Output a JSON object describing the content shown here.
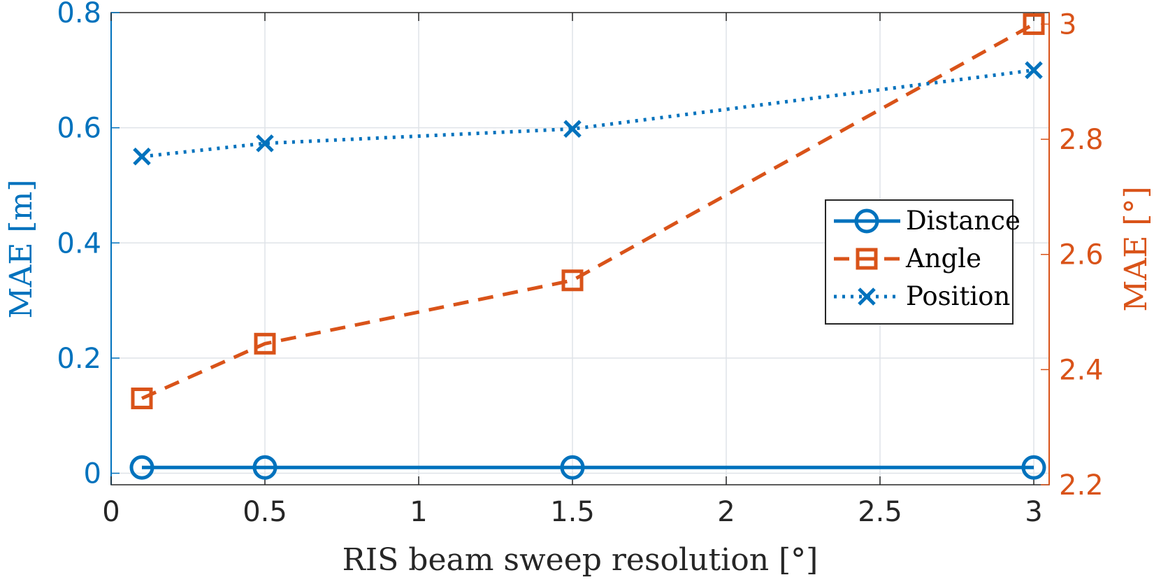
{
  "chart_data": {
    "type": "line",
    "x": [
      0.1,
      0.5,
      1.5,
      3
    ],
    "xlabel": "RIS beam sweep resolution [°]",
    "xlim": [
      0,
      3.05
    ],
    "xticks": [
      "0",
      "0.5",
      "1",
      "1.5",
      "2",
      "2.5",
      "3"
    ],
    "ylabel_left": "MAE [m]",
    "ylim_left": [
      -0.02,
      0.8
    ],
    "yticks_left": [
      "0",
      "0.2",
      "0.4",
      "0.6",
      "0.8"
    ],
    "ylabel_right": "MAE [°]",
    "ylim_right": [
      2.2,
      3.02
    ],
    "yticks_right": [
      "2.2",
      "2.4",
      "2.6",
      "2.8",
      "3"
    ],
    "grid": true,
    "legend_position": "right",
    "series": [
      {
        "name": "Distance",
        "axis": "left",
        "values": [
          0.01,
          0.01,
          0.01,
          0.01
        ],
        "color": "#0072BD",
        "line": "solid",
        "marker": "circle"
      },
      {
        "name": "Angle",
        "axis": "right",
        "values": [
          2.35,
          2.445,
          2.555,
          3.0
        ],
        "color": "#D95319",
        "line": "dashed",
        "marker": "square"
      },
      {
        "name": "Position",
        "axis": "left",
        "values": [
          0.55,
          0.573,
          0.598,
          0.7
        ],
        "color": "#0072BD",
        "line": "dotted",
        "marker": "x"
      }
    ]
  }
}
